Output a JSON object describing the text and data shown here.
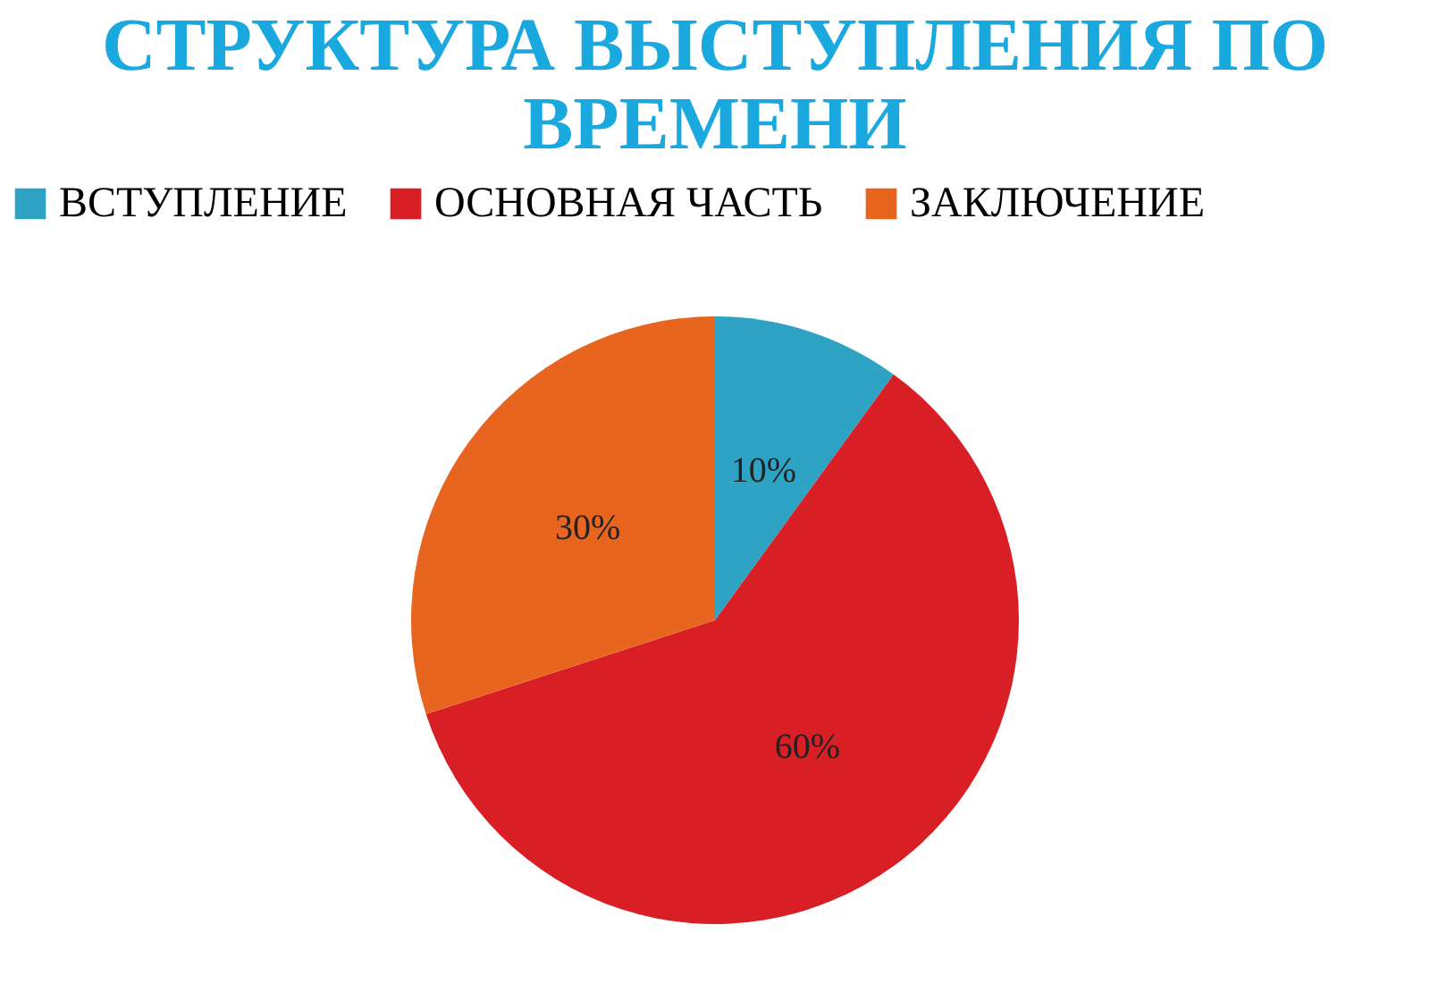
{
  "chart_data": {
    "type": "pie",
    "title": "СТРУКТУРА ВЫСТУПЛЕНИЯ ПО ВРЕМЕНИ",
    "categories": [
      "ВСТУПЛЕНИЕ",
      "ОСНОВНАЯ ЧАСТЬ",
      "ЗАКЛЮЧЕНИЕ"
    ],
    "values": [
      10,
      60,
      30
    ],
    "colors": [
      "#2fa3c3",
      "#d91f26",
      "#e8651f"
    ],
    "value_labels": [
      "10%",
      "60%",
      "30%"
    ],
    "legend": "top"
  }
}
